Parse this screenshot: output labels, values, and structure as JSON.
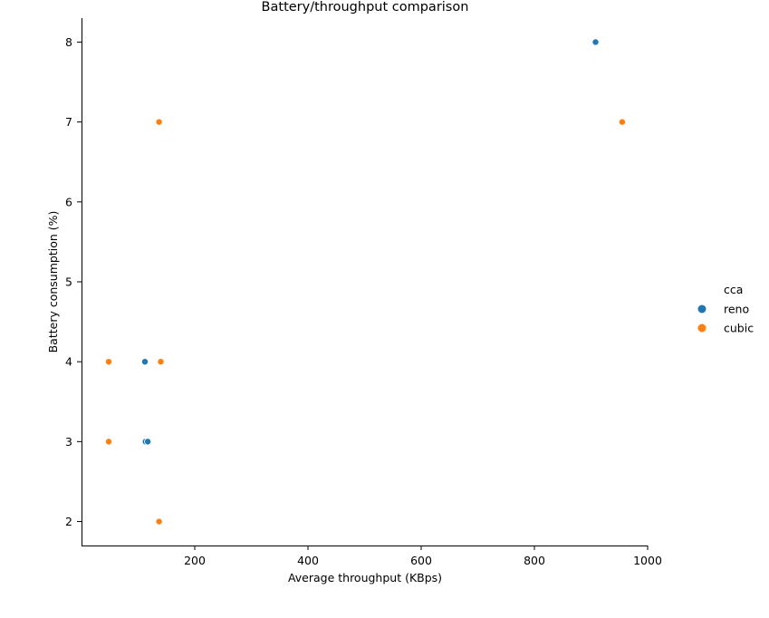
{
  "chart_data": {
    "type": "scatter",
    "title": "Battery/throughput comparison",
    "xlabel": "Average throughput (KBps)",
    "ylabel": "Battery consumption (%)",
    "xlim": [
      0,
      1000
    ],
    "ylim": [
      1.7,
      8.3
    ],
    "xticks": [
      200,
      400,
      600,
      800,
      1000
    ],
    "yticks": [
      2,
      3,
      4,
      5,
      6,
      7,
      8
    ],
    "grid": false,
    "legend": {
      "title": "cca",
      "position": "right"
    },
    "series": [
      {
        "name": "reno",
        "color": "#1f77b4",
        "points": [
          [
            908,
            8
          ],
          [
            112,
            4
          ],
          [
            113,
            3
          ],
          [
            117,
            3
          ]
        ]
      },
      {
        "name": "cubic",
        "color": "#ff7f0e",
        "points": [
          [
            137,
            7
          ],
          [
            955,
            7
          ],
          [
            48,
            4
          ],
          [
            140,
            4
          ],
          [
            48,
            3
          ],
          [
            137,
            2
          ]
        ]
      }
    ]
  }
}
